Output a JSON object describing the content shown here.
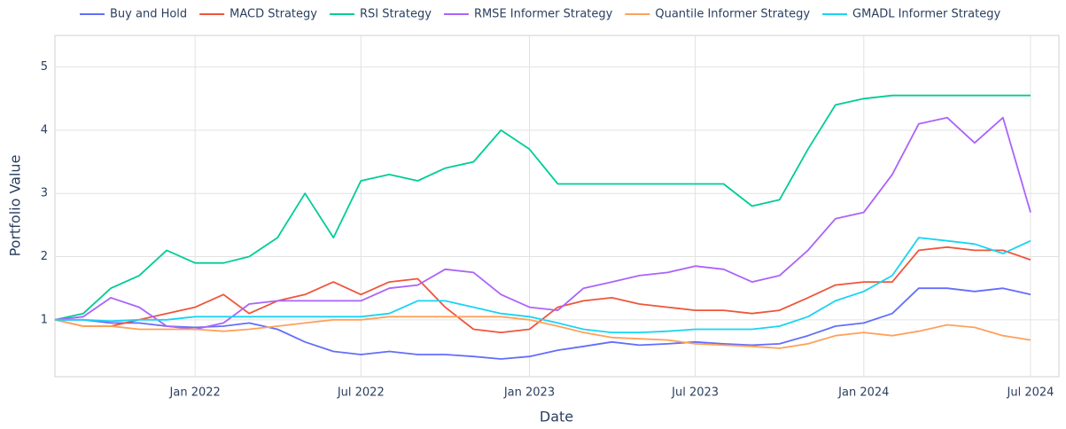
{
  "chart_data": {
    "type": "line",
    "xlabel": "Date",
    "ylabel": "Portfolio Value",
    "x": [
      "2021-08",
      "2021-09",
      "2021-10",
      "2021-11",
      "2021-12",
      "2022-01",
      "2022-02",
      "2022-03",
      "2022-04",
      "2022-05",
      "2022-06",
      "2022-07",
      "2022-08",
      "2022-09",
      "2022-10",
      "2022-11",
      "2022-12",
      "2023-01",
      "2023-02",
      "2023-03",
      "2023-04",
      "2023-05",
      "2023-06",
      "2023-07",
      "2023-08",
      "2023-09",
      "2023-10",
      "2023-11",
      "2023-12",
      "2024-01",
      "2024-02",
      "2024-03",
      "2024-04",
      "2024-05",
      "2024-06",
      "2024-07"
    ],
    "series": [
      {
        "name": "Buy and Hold",
        "color": "#636efa",
        "values": [
          1.0,
          1.0,
          0.95,
          0.95,
          0.9,
          0.88,
          0.9,
          0.95,
          0.85,
          0.65,
          0.5,
          0.45,
          0.5,
          0.45,
          0.45,
          0.42,
          0.38,
          0.42,
          0.52,
          0.58,
          0.65,
          0.6,
          0.62,
          0.65,
          0.62,
          0.6,
          0.62,
          0.75,
          0.9,
          0.95,
          1.1,
          1.5,
          1.5,
          1.45,
          1.5,
          1.4
        ]
      },
      {
        "name": "MACD Strategy",
        "color": "#ef553b",
        "values": [
          1.0,
          0.9,
          0.9,
          1.0,
          1.1,
          1.2,
          1.4,
          1.1,
          1.3,
          1.4,
          1.6,
          1.4,
          1.6,
          1.65,
          1.2,
          0.85,
          0.8,
          0.85,
          1.2,
          1.3,
          1.35,
          1.25,
          1.2,
          1.15,
          1.15,
          1.1,
          1.15,
          1.35,
          1.55,
          1.6,
          1.6,
          2.1,
          2.15,
          2.1,
          2.1,
          1.95
        ]
      },
      {
        "name": "RSI Strategy",
        "color": "#00cc96",
        "values": [
          1.0,
          1.1,
          1.5,
          1.7,
          2.1,
          1.9,
          1.9,
          2.0,
          2.3,
          3.0,
          2.3,
          3.2,
          3.3,
          3.2,
          3.4,
          3.5,
          4.0,
          3.7,
          3.15,
          3.15,
          3.15,
          3.15,
          3.15,
          3.15,
          3.15,
          2.8,
          2.9,
          3.7,
          4.4,
          4.5,
          4.55,
          4.55,
          4.55,
          4.55,
          4.55,
          4.55
        ]
      },
      {
        "name": "RMSE Informer Strategy",
        "color": "#ab63fa",
        "values": [
          1.0,
          1.05,
          1.35,
          1.2,
          0.9,
          0.85,
          0.95,
          1.25,
          1.3,
          1.3,
          1.3,
          1.3,
          1.5,
          1.55,
          1.8,
          1.75,
          1.4,
          1.2,
          1.15,
          1.5,
          1.6,
          1.7,
          1.75,
          1.85,
          1.8,
          1.6,
          1.7,
          2.1,
          2.6,
          2.7,
          3.3,
          4.1,
          4.2,
          3.8,
          4.2,
          2.7
        ]
      },
      {
        "name": "Quantile Informer Strategy",
        "color": "#ffa15a",
        "values": [
          1.0,
          0.9,
          0.9,
          0.85,
          0.85,
          0.85,
          0.82,
          0.85,
          0.9,
          0.95,
          1.0,
          1.0,
          1.05,
          1.05,
          1.05,
          1.05,
          1.05,
          1.0,
          0.9,
          0.8,
          0.72,
          0.7,
          0.68,
          0.62,
          0.6,
          0.58,
          0.55,
          0.62,
          0.75,
          0.8,
          0.75,
          0.82,
          0.92,
          0.88,
          0.75,
          0.68
        ]
      },
      {
        "name": "GMADL Informer Strategy",
        "color": "#19d3f3",
        "values": [
          1.0,
          1.0,
          0.98,
          1.0,
          1.0,
          1.05,
          1.05,
          1.05,
          1.05,
          1.05,
          1.05,
          1.05,
          1.1,
          1.3,
          1.3,
          1.2,
          1.1,
          1.05,
          0.95,
          0.85,
          0.8,
          0.8,
          0.82,
          0.85,
          0.85,
          0.85,
          0.9,
          1.05,
          1.3,
          1.45,
          1.7,
          2.3,
          2.25,
          2.2,
          2.05,
          2.25
        ]
      }
    ],
    "xlim": [
      "2021-08",
      "2024-08"
    ],
    "xticks": [
      {
        "value": "2022-01",
        "label": "Jan 2022"
      },
      {
        "value": "2022-07",
        "label": "Jul 2022"
      },
      {
        "value": "2023-01",
        "label": "Jan 2023"
      },
      {
        "value": "2023-07",
        "label": "Jul 2023"
      },
      {
        "value": "2024-01",
        "label": "Jan 2024"
      },
      {
        "value": "2024-07",
        "label": "Jul 2024"
      }
    ],
    "ylim": [
      0.1,
      5.5
    ],
    "yticks": [
      1,
      2,
      3,
      4,
      5
    ],
    "grid": true,
    "legend": "top"
  }
}
